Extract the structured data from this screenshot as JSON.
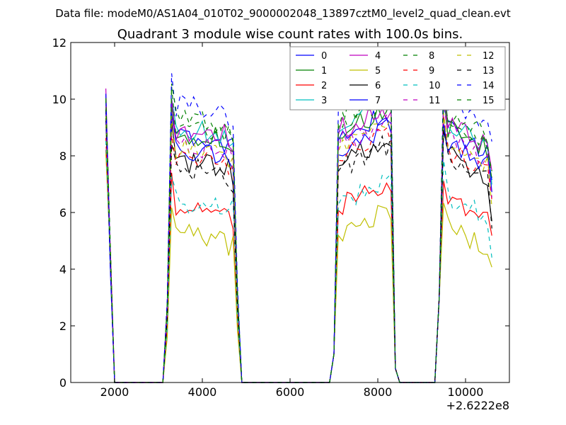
{
  "suptitle": "Data file: modeM0/AS1A04_010T02_9000002048_13897cztM0_level2_quad_clean.evt",
  "chart_data": {
    "type": "line",
    "title": "Quadrant 3 module wise count rates with 100.0s bins.",
    "xlabel": "",
    "ylabel": "",
    "xlim": [
      1000,
      11000
    ],
    "ylim": [
      0,
      12
    ],
    "x_ticks": [
      2000,
      4000,
      6000,
      8000,
      10000
    ],
    "x_tick_labels": [
      "2000",
      "4000",
      "6000",
      "8000",
      "10000"
    ],
    "y_ticks": [
      0,
      2,
      4,
      6,
      8,
      10,
      12
    ],
    "y_tick_labels": [
      "0",
      "2",
      "4",
      "6",
      "8",
      "10",
      "12"
    ],
    "x_offset_label": "+2.6222e8",
    "grid": false,
    "legend_position": "top-right",
    "series": [
      {
        "name": "0",
        "color": "#0000ff",
        "dash": "solid",
        "level": 8.7
      },
      {
        "name": "1",
        "color": "#008000",
        "dash": "solid",
        "level": 8.8
      },
      {
        "name": "2",
        "color": "#ff0000",
        "dash": "solid",
        "level": 6.2
      },
      {
        "name": "3",
        "color": "#00bfbf",
        "dash": "solid",
        "level": 9.0
      },
      {
        "name": "4",
        "color": "#bf00bf",
        "dash": "solid",
        "level": 8.9
      },
      {
        "name": "5",
        "color": "#bfbf00",
        "dash": "solid",
        "level": 5.3
      },
      {
        "name": "6",
        "color": "#000000",
        "dash": "solid",
        "level": 7.8
      },
      {
        "name": "7",
        "color": "#0000ff",
        "dash": "solid",
        "level": 8.2
      },
      {
        "name": "8",
        "color": "#008000",
        "dash": "dashed",
        "level": 9.1
      },
      {
        "name": "9",
        "color": "#ff0000",
        "dash": "dashed",
        "level": 8.0
      },
      {
        "name": "10",
        "color": "#00bfbf",
        "dash": "dashed",
        "level": 6.4
      },
      {
        "name": "11",
        "color": "#bf00bf",
        "dash": "dashed",
        "level": 8.4
      },
      {
        "name": "12",
        "color": "#bfbf00",
        "dash": "dashed",
        "level": 8.3
      },
      {
        "name": "13",
        "color": "#000000",
        "dash": "dashed",
        "level": 7.6
      },
      {
        "name": "14",
        "color": "#0000ff",
        "dash": "dashed",
        "level": 9.8
      },
      {
        "name": "15",
        "color": "#008000",
        "dash": "dashed",
        "level": 9.3
      }
    ],
    "segments": [
      {
        "start": 1800,
        "end": 2000,
        "kind": "spike"
      },
      {
        "start": 3100,
        "end": 4900,
        "kind": "block"
      },
      {
        "start": 6900,
        "end": 8500,
        "kind": "rising"
      },
      {
        "start": 9300,
        "end": 10600,
        "kind": "falling"
      }
    ]
  }
}
